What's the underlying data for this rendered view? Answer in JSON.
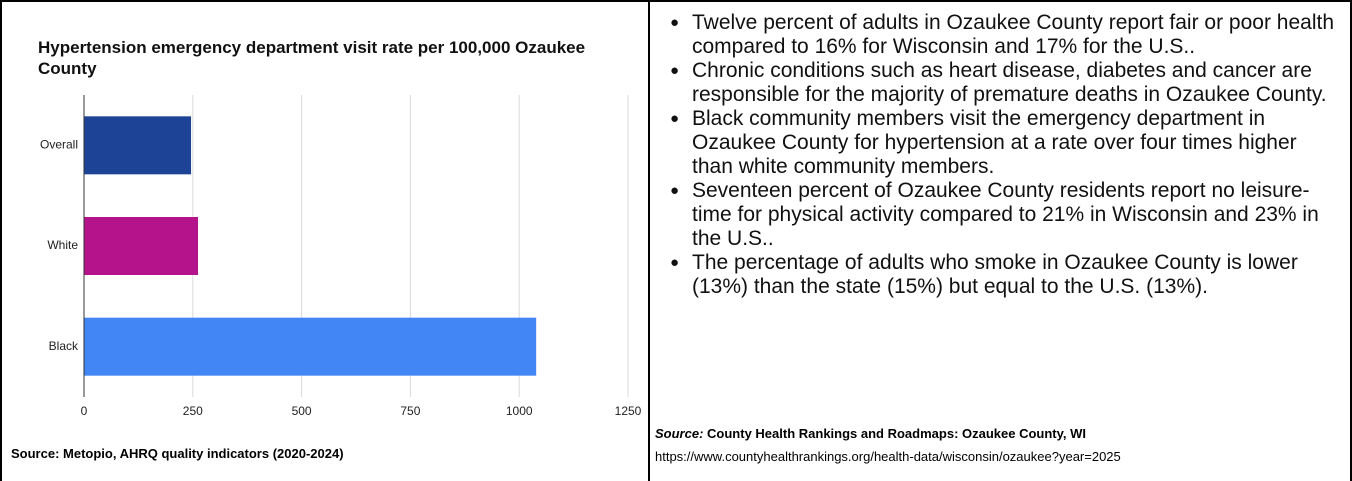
{
  "chart_data": {
    "type": "bar",
    "orientation": "horizontal",
    "title": "Hypertension emergency department visit rate per 100,000 Ozaukee County",
    "categories": [
      "Overall",
      "White",
      "Black"
    ],
    "values": [
      246,
      262,
      1039
    ],
    "colors": [
      "#1c4396",
      "#b5138b",
      "#4285f4"
    ],
    "xlim": [
      0,
      1250
    ],
    "xticks": [
      0,
      250,
      500,
      750,
      1000,
      1250
    ],
    "grid": true,
    "source": "Source: Metopio, AHRQ quality indicators (2020-2024)"
  },
  "bullets": [
    "Twelve percent of adults in Ozaukee County report fair or poor health compared to 16% for Wisconsin and 17% for the U.S..",
    "Chronic conditions such as heart disease, diabetes and cancer are responsible for the majority of premature deaths in Ozaukee County.",
    "Black community members visit the emergency department in Ozaukee County  for hypertension at a rate over four times higher than white community members.",
    "Seventeen percent of Ozaukee County residents report no leisure-time for physical activity compared to 21% in Wisconsin and 23% in the U.S..",
    "The percentage of adults who smoke in Ozaukee County is lower (13%) than the state (15%) but equal to the U.S. (13%)."
  ],
  "source": {
    "label": "Source:",
    "name": "County Health Rankings and Roadmaps: Ozaukee County, WI",
    "url": "https://www.countyhealthrankings.org/health-data/wisconsin/ozaukee?year=2025"
  }
}
